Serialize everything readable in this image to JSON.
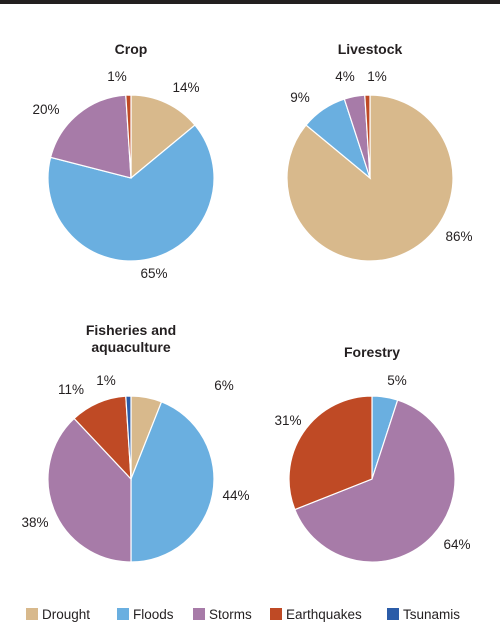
{
  "colors": {
    "Drought": "#d8b98c",
    "Floods": "#6aafe0",
    "Storms": "#a77ba8",
    "Earthquakes": "#bf4a25",
    "Tsunamis": "#2b5ca8",
    "rule": "#231f20"
  },
  "legend": [
    "Drought",
    "Floods",
    "Storms",
    "Earthquakes",
    "Tsunamis"
  ],
  "chart_data": [
    {
      "type": "pie",
      "title_lines": [
        "Crop"
      ],
      "labels": [
        "Drought",
        "Floods",
        "Storms",
        "Earthquakes"
      ],
      "values": [
        14,
        65,
        20,
        1
      ],
      "value_labels": [
        "14%",
        "65%",
        "20%",
        "1%"
      ]
    },
    {
      "type": "pie",
      "title_lines": [
        "Livestock"
      ],
      "labels": [
        "Drought",
        "Floods",
        "Storms",
        "Earthquakes"
      ],
      "values": [
        86,
        9,
        4,
        1
      ],
      "value_labels": [
        "86%",
        "9%",
        "4%",
        "1%"
      ]
    },
    {
      "type": "pie",
      "title_lines": [
        "Fisheries and",
        "aquaculture"
      ],
      "labels": [
        "Drought",
        "Floods",
        "Storms",
        "Earthquakes",
        "Tsunamis"
      ],
      "values": [
        6,
        44,
        38,
        11,
        1
      ],
      "value_labels": [
        "6%",
        "44%",
        "38%",
        "11%",
        "1%"
      ]
    },
    {
      "type": "pie",
      "title_lines": [
        "Forestry"
      ],
      "labels": [
        "Floods",
        "Storms",
        "Earthquakes"
      ],
      "values": [
        5,
        64,
        31
      ],
      "value_labels": [
        "5%",
        "64%",
        "31%"
      ]
    }
  ]
}
